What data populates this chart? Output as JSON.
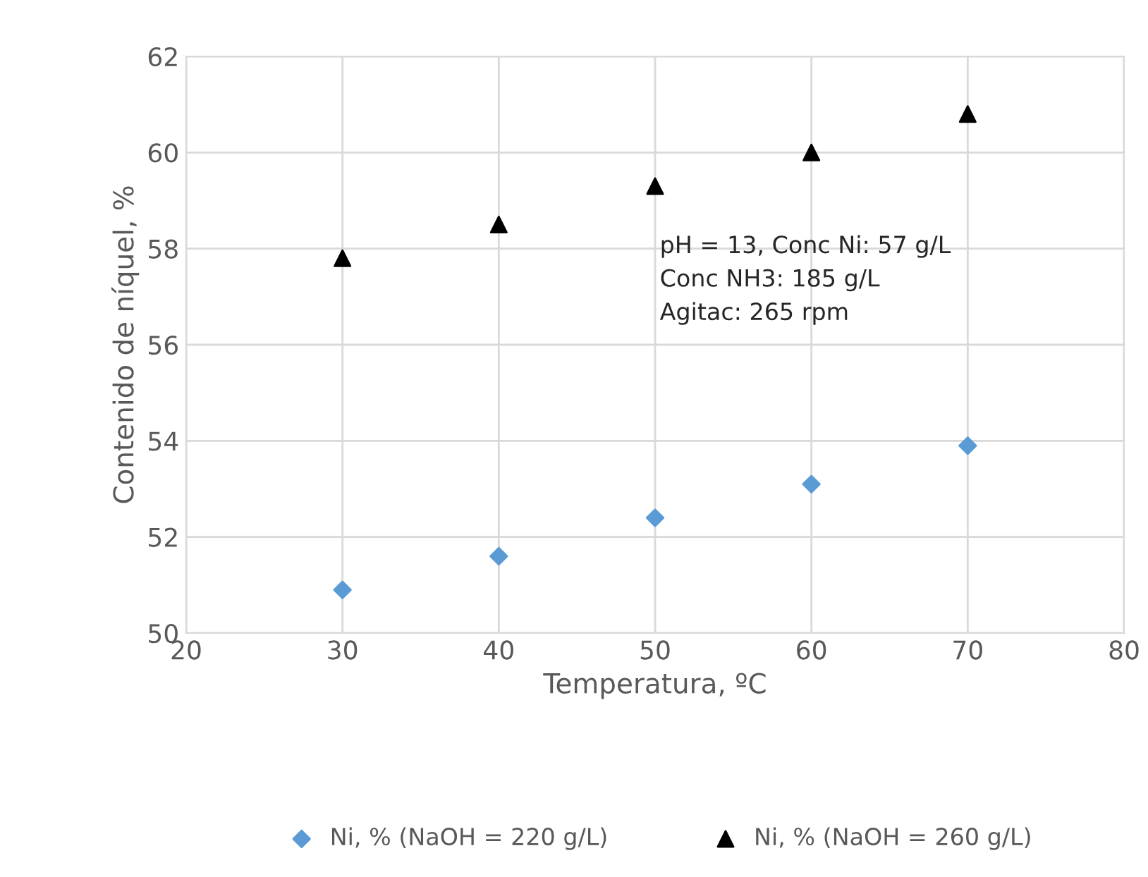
{
  "chart_data": {
    "type": "scatter",
    "xlabel": "Temperatura, ºC",
    "ylabel": "Contenido de níquel, %",
    "x": [
      30,
      40,
      50,
      60,
      70
    ],
    "series": [
      {
        "name": "Ni, % (NaOH = 220 g/L)",
        "color": "#5b9bd5",
        "marker": "diamond",
        "values": [
          50.9,
          51.6,
          52.4,
          53.1,
          53.9
        ]
      },
      {
        "name": "Ni, % (NaOH = 260 g/L)",
        "color": "#000000",
        "marker": "triangle",
        "values": [
          57.8,
          58.5,
          59.3,
          60.0,
          60.8
        ]
      }
    ],
    "annotations": [
      "pH = 13, Conc Ni: 57 g/L\nConc NH3: 185 g/L\nAgitac: 265 rpm"
    ],
    "xlim": [
      20,
      80
    ],
    "xticks": [
      20,
      30,
      40,
      50,
      60,
      70,
      80
    ],
    "ylim": [
      50,
      62
    ],
    "yticks": [
      50,
      52,
      54,
      56,
      58,
      60,
      62
    ],
    "grid": true,
    "legend": "bottom"
  }
}
